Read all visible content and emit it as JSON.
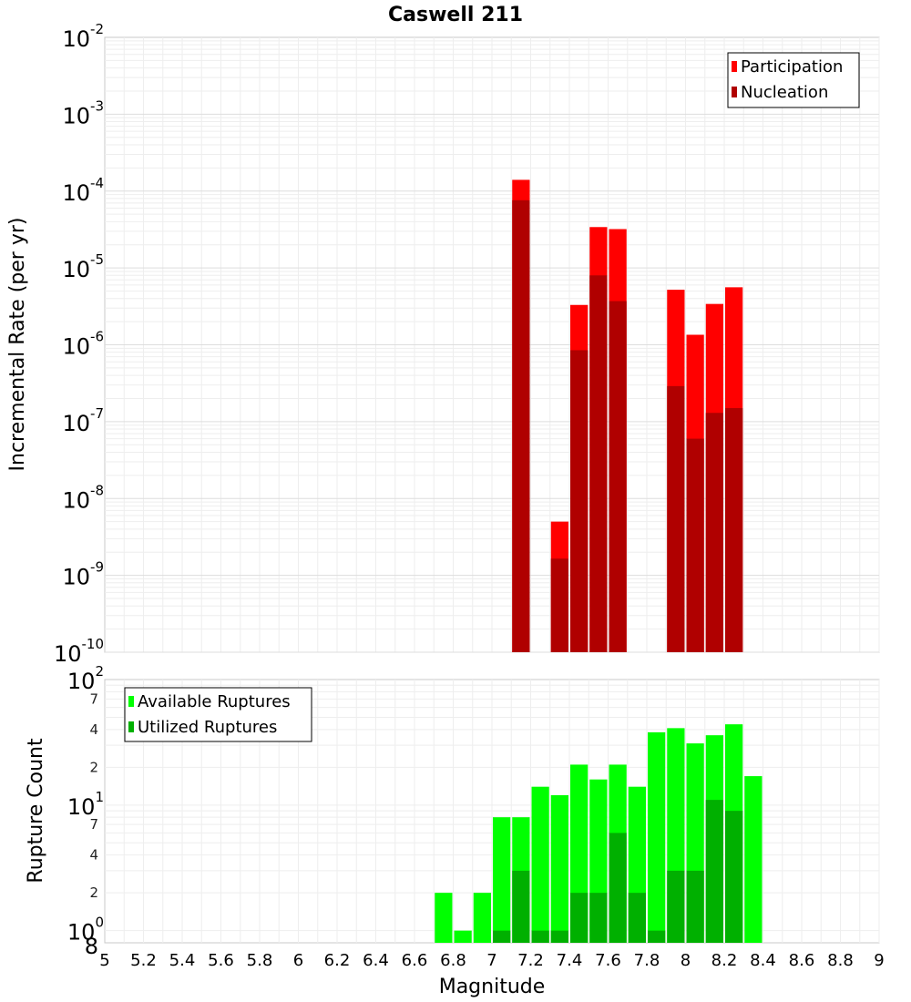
{
  "chart_data": [
    {
      "panel": "rate",
      "type": "bar",
      "title": "Caswell 211",
      "xlabel": "Magnitude",
      "ylabel": "Incremental Rate (per yr)",
      "yscale": "log",
      "xlim": [
        5,
        9
      ],
      "ylim": [
        1e-10,
        0.01
      ],
      "bar_width": 0.1,
      "y_tick_labels": [
        {
          "value": 1e-10,
          "base": "10",
          "exp": "-10"
        },
        {
          "value": 1e-09,
          "base": "10",
          "exp": "-9"
        },
        {
          "value": 1e-08,
          "base": "10",
          "exp": "-8"
        },
        {
          "value": 1e-07,
          "base": "10",
          "exp": "-7"
        },
        {
          "value": 1e-06,
          "base": "10",
          "exp": "-6"
        },
        {
          "value": 1e-05,
          "base": "10",
          "exp": "-5"
        },
        {
          "value": 0.0001,
          "base": "10",
          "exp": "-4"
        },
        {
          "value": 0.001,
          "base": "10",
          "exp": "-3"
        },
        {
          "value": 0.01,
          "base": "10",
          "exp": "-2"
        }
      ],
      "legend": {
        "position": "top-right"
      },
      "series": [
        {
          "name": "Participation",
          "color": "#ff0000",
          "x": [
            7.15,
            7.35,
            7.45,
            7.55,
            7.65,
            7.95,
            8.05,
            8.15,
            8.25
          ],
          "values": [
            0.00014,
            5e-09,
            3.3e-06,
            3.4e-05,
            3.2e-05,
            5.2e-06,
            1.35e-06,
            3.4e-06,
            5.6e-06
          ]
        },
        {
          "name": "Nucleation",
          "color": "#b00000",
          "x": [
            7.15,
            7.35,
            7.45,
            7.55,
            7.65,
            7.95,
            8.05,
            8.15,
            8.25
          ],
          "values": [
            7.6e-05,
            1.65e-09,
            8.5e-07,
            8e-06,
            3.7e-06,
            2.9e-07,
            6e-08,
            1.3e-07,
            1.5e-07
          ]
        }
      ]
    },
    {
      "panel": "count",
      "type": "bar",
      "title": "",
      "xlabel": "Magnitude",
      "ylabel": "Rupture Count",
      "yscale": "log",
      "xlim": [
        5,
        9
      ],
      "ylim": [
        0.8,
        100
      ],
      "bar_width": 0.1,
      "x_ticks": [
        "5",
        "5.2",
        "5.4",
        "5.6",
        "5.8",
        "6",
        "6.2",
        "6.4",
        "6.6",
        "6.8",
        "7",
        "7.2",
        "7.4",
        "7.6",
        "7.8",
        "8",
        "8.2",
        "8.4",
        "8.6",
        "8.8",
        "9"
      ],
      "y_tick_labels": [
        {
          "value": 1,
          "base": "10",
          "exp": "0"
        },
        {
          "value": 10,
          "base": "10",
          "exp": "1"
        },
        {
          "value": 100,
          "base": "10",
          "exp": "2"
        }
      ],
      "y_minor_labels": [
        {
          "value": 0.8,
          "label": "8"
        },
        {
          "value": 2,
          "label": "2"
        },
        {
          "value": 4,
          "label": "4"
        },
        {
          "value": 7,
          "label": "7"
        },
        {
          "value": 20,
          "label": "2"
        },
        {
          "value": 40,
          "label": "4"
        },
        {
          "value": 70,
          "label": "7"
        }
      ],
      "legend": {
        "position": "top-left"
      },
      "series": [
        {
          "name": "Available Ruptures",
          "color": "#00ff00",
          "x": [
            6.75,
            6.85,
            6.95,
            7.05,
            7.15,
            7.25,
            7.35,
            7.45,
            7.55,
            7.65,
            7.75,
            7.85,
            7.95,
            8.05,
            8.15,
            8.25,
            8.35
          ],
          "values": [
            2,
            1,
            2,
            8,
            8,
            14,
            12,
            21,
            16,
            21,
            14,
            38,
            41,
            31,
            36,
            44,
            17
          ]
        },
        {
          "name": "Utilized Ruptures",
          "color": "#00b000",
          "x": [
            7.05,
            7.15,
            7.25,
            7.35,
            7.45,
            7.55,
            7.65,
            7.75,
            7.85,
            7.95,
            8.05,
            8.15,
            8.25
          ],
          "values": [
            1,
            3,
            1,
            1,
            2,
            2,
            6,
            2,
            1,
            3,
            3,
            11,
            9
          ]
        }
      ]
    }
  ]
}
